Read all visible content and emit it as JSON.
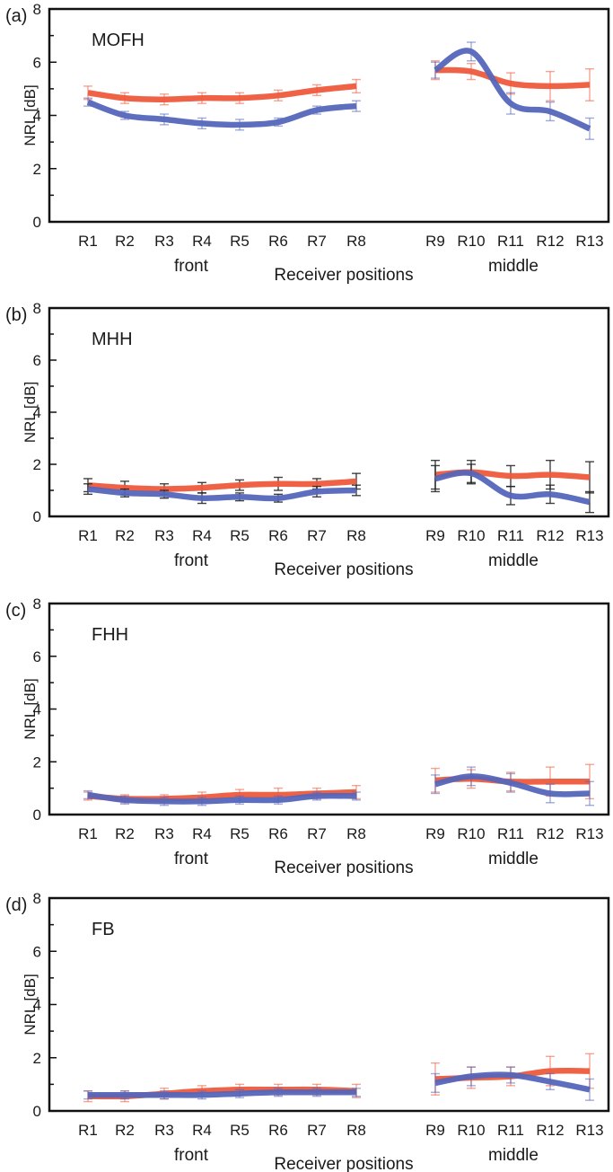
{
  "chart_data": [
    {
      "type": "line",
      "panel_label": "(a)",
      "title": "MOFH",
      "ylabel": "NRL [dB]",
      "xlabel": "Receiver positions",
      "group_labels": [
        "front",
        "middle"
      ],
      "categories": [
        "R1",
        "R2",
        "R3",
        "R4",
        "R5",
        "R6",
        "R7",
        "R8",
        "R9",
        "R10",
        "R11",
        "R12",
        "R13"
      ],
      "ylim": [
        0,
        8
      ],
      "yticks": [
        0,
        2,
        4,
        6,
        8
      ],
      "series": [
        {
          "color": "#ee5a3c",
          "values": [
            4.85,
            4.65,
            4.6,
            4.65,
            4.65,
            4.75,
            4.95,
            5.1,
            5.7,
            5.65,
            5.2,
            5.1,
            5.15
          ],
          "errors": [
            0.25,
            0.2,
            0.2,
            0.2,
            0.2,
            0.2,
            0.2,
            0.25,
            0.35,
            0.3,
            0.4,
            0.55,
            0.6
          ]
        },
        {
          "color": "#5566bb",
          "values": [
            4.5,
            4.0,
            3.85,
            3.7,
            3.65,
            3.75,
            4.2,
            4.35,
            5.7,
            6.4,
            4.45,
            4.15,
            3.5
          ],
          "errors": [
            0.15,
            0.15,
            0.2,
            0.2,
            0.2,
            0.15,
            0.15,
            0.2,
            0.3,
            0.35,
            0.4,
            0.35,
            0.4
          ]
        }
      ]
    },
    {
      "type": "line",
      "panel_label": "(b)",
      "title": "MHH",
      "ylabel": "NRL [dB]",
      "xlabel": "Receiver positions",
      "group_labels": [
        "front",
        "middle"
      ],
      "categories": [
        "R1",
        "R2",
        "R3",
        "R4",
        "R5",
        "R6",
        "R7",
        "R8",
        "R9",
        "R10",
        "R11",
        "R12",
        "R13"
      ],
      "ylim": [
        0,
        8
      ],
      "yticks": [
        0,
        2,
        4,
        6,
        8
      ],
      "series": [
        {
          "color": "#ee5a3c",
          "values": [
            1.2,
            1.1,
            1.05,
            1.1,
            1.2,
            1.25,
            1.25,
            1.35,
            1.6,
            1.7,
            1.55,
            1.6,
            1.5
          ],
          "errors": [
            0.25,
            0.25,
            0.2,
            0.2,
            0.2,
            0.25,
            0.2,
            0.3,
            0.55,
            0.45,
            0.4,
            0.55,
            0.6
          ]
        },
        {
          "color": "#5566bb",
          "values": [
            1.05,
            0.9,
            0.85,
            0.7,
            0.75,
            0.7,
            0.95,
            1.0,
            1.45,
            1.65,
            0.8,
            0.85,
            0.55
          ],
          "errors": [
            0.2,
            0.15,
            0.15,
            0.2,
            0.15,
            0.15,
            0.2,
            0.2,
            0.5,
            0.35,
            0.35,
            0.35,
            0.4
          ]
        }
      ]
    },
    {
      "type": "line",
      "panel_label": "(c)",
      "title": "FHH",
      "ylabel": "NRL [dB]",
      "xlabel": "Receiver positions",
      "group_labels": [
        "front",
        "middle"
      ],
      "categories": [
        "R1",
        "R2",
        "R3",
        "R4",
        "R5",
        "R6",
        "R7",
        "R8",
        "R9",
        "R10",
        "R11",
        "R12",
        "R13"
      ],
      "ylim": [
        0,
        8
      ],
      "yticks": [
        0,
        2,
        4,
        6,
        8
      ],
      "series": [
        {
          "color": "#ee5a3c",
          "values": [
            0.7,
            0.6,
            0.6,
            0.65,
            0.75,
            0.75,
            0.8,
            0.85,
            1.3,
            1.35,
            1.25,
            1.25,
            1.25
          ],
          "errors": [
            0.15,
            0.15,
            0.15,
            0.2,
            0.2,
            0.25,
            0.2,
            0.25,
            0.45,
            0.35,
            0.35,
            0.55,
            0.65
          ]
        },
        {
          "color": "#5566bb",
          "values": [
            0.75,
            0.55,
            0.5,
            0.5,
            0.55,
            0.55,
            0.7,
            0.7,
            1.15,
            1.45,
            1.2,
            0.8,
            0.8
          ],
          "errors": [
            0.15,
            0.15,
            0.15,
            0.15,
            0.15,
            0.15,
            0.15,
            0.15,
            0.35,
            0.35,
            0.35,
            0.35,
            0.45
          ]
        }
      ]
    },
    {
      "type": "line",
      "panel_label": "(d)",
      "title": "FB",
      "ylabel": "NRL [dB]",
      "xlabel": "Receiver positions",
      "group_labels": [
        "front",
        "middle"
      ],
      "categories": [
        "R1",
        "R2",
        "R3",
        "R4",
        "R5",
        "R6",
        "R7",
        "R8",
        "R9",
        "R10",
        "R11",
        "R12",
        "R13"
      ],
      "ylim": [
        0,
        8
      ],
      "yticks": [
        0,
        2,
        4,
        6,
        8
      ],
      "series": [
        {
          "color": "#ee5a3c",
          "values": [
            0.55,
            0.55,
            0.65,
            0.75,
            0.8,
            0.8,
            0.8,
            0.75,
            1.2,
            1.25,
            1.3,
            1.5,
            1.5
          ],
          "errors": [
            0.2,
            0.2,
            0.2,
            0.2,
            0.2,
            0.2,
            0.2,
            0.25,
            0.6,
            0.4,
            0.35,
            0.55,
            0.65
          ]
        },
        {
          "color": "#5566bb",
          "values": [
            0.6,
            0.6,
            0.6,
            0.6,
            0.65,
            0.7,
            0.7,
            0.7,
            1.05,
            1.3,
            1.35,
            1.1,
            0.8
          ],
          "errors": [
            0.15,
            0.15,
            0.15,
            0.15,
            0.15,
            0.15,
            0.15,
            0.15,
            0.35,
            0.35,
            0.3,
            0.3,
            0.4
          ]
        }
      ]
    }
  ]
}
